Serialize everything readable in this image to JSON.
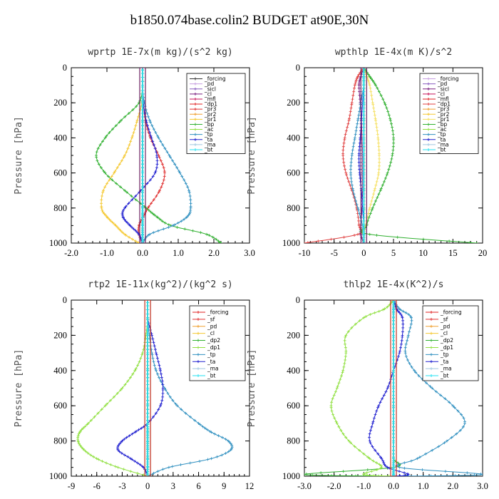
{
  "title": "b1850.074base.colin2  BUDGET at90E,30N",
  "chart_data": [
    {
      "type": "line",
      "title": "wprtp  1E-7x(m kg)/(s^2 kg)",
      "ylabel": "Pressure [hPa]",
      "xlim": [
        -2.0,
        3.0
      ],
      "ylim": [
        1000,
        0
      ],
      "xticks": [
        "-2.0",
        "-1.0",
        "0.0",
        "1.0",
        "2.0",
        "3.0"
      ],
      "yticks": [
        "0",
        "200",
        "400",
        "600",
        "800",
        "1000"
      ],
      "legend": "top-right",
      "y": [
        0,
        100,
        200,
        300,
        400,
        500,
        600,
        700,
        800,
        850,
        900,
        950,
        1000
      ],
      "series": [
        {
          "name": "_forcing",
          "color": "#333333",
          "values": [
            0,
            0,
            0,
            0,
            0,
            0,
            0,
            0,
            0,
            0,
            0,
            0,
            0
          ]
        },
        {
          "name": "_pd",
          "color": "#c8a0e0",
          "values": [
            0,
            0,
            0,
            0,
            0,
            0,
            0,
            0,
            0,
            0,
            0,
            0,
            0
          ]
        },
        {
          "name": "_sicl",
          "color": "#8a5fc0",
          "values": [
            0,
            0,
            0,
            0,
            0,
            0,
            0,
            0,
            0,
            0,
            0,
            0,
            0
          ]
        },
        {
          "name": "_cl",
          "color": "#7a2080",
          "values": [
            0,
            0,
            0,
            0,
            0,
            0,
            0,
            0,
            0,
            0,
            0,
            0,
            0
          ]
        },
        {
          "name": "_mfl",
          "color": "#c8145a",
          "values": [
            0,
            0,
            0,
            0,
            0,
            0,
            0,
            0,
            0,
            0,
            0,
            0,
            0
          ]
        },
        {
          "name": "_dp1",
          "color": "#e02020",
          "values": [
            0,
            0,
            0,
            0,
            0,
            0,
            0,
            0,
            0,
            0,
            0,
            0,
            0
          ]
        },
        {
          "name": "_pr3",
          "color": "#e03030",
          "values": [
            0,
            0,
            0.02,
            0.08,
            0.22,
            0.45,
            0.62,
            0.48,
            0.15,
            0.02,
            -0.1,
            -0.1,
            0
          ]
        },
        {
          "name": "_pr2",
          "color": "#f0a030",
          "values": [
            0,
            0,
            0,
            0,
            0,
            0,
            0,
            0,
            0,
            0,
            0,
            0,
            0
          ]
        },
        {
          "name": "_pr1",
          "color": "#f5c830",
          "values": [
            0,
            0,
            -0.02,
            -0.15,
            -0.3,
            -0.5,
            -0.8,
            -1.1,
            -1.15,
            -1.0,
            -0.75,
            -0.5,
            -0.1
          ]
        },
        {
          "name": "_bp",
          "color": "#30b030",
          "values": [
            0,
            0,
            -0.1,
            -0.6,
            -1.05,
            -1.3,
            -1.05,
            -0.5,
            0.1,
            0.4,
            0.8,
            1.8,
            2.2
          ]
        },
        {
          "name": "_ac",
          "color": "#90e040",
          "values": [
            0,
            0,
            0,
            0,
            0,
            0,
            0,
            0,
            0,
            0,
            0,
            0,
            0
          ]
        },
        {
          "name": "_tp",
          "color": "#3090c0",
          "values": [
            0,
            0,
            0.05,
            0.2,
            0.45,
            0.75,
            1.05,
            1.3,
            1.35,
            1.25,
            0.85,
            0.2,
            0
          ]
        },
        {
          "name": "_ta",
          "color": "#2020d0",
          "values": [
            0,
            0,
            0.02,
            0.1,
            0.25,
            0.4,
            0.35,
            -0.05,
            -0.5,
            -0.55,
            -0.35,
            -0.1,
            0
          ]
        },
        {
          "name": "_ma",
          "color": "#a0c8e0",
          "values": [
            0,
            0,
            0,
            0,
            0,
            0,
            0,
            0,
            0,
            0,
            0,
            0,
            0
          ]
        },
        {
          "name": "_bt",
          "color": "#20e0f0",
          "values": [
            0,
            0,
            0,
            0,
            0,
            0,
            0,
            0,
            0,
            0,
            0,
            0,
            0
          ]
        }
      ]
    },
    {
      "type": "line",
      "title": "wpthlp  1E-4x(m K)/s^2",
      "ylabel": "Pressure [hPa]",
      "xlim": [
        -10,
        20
      ],
      "ylim": [
        1000,
        0
      ],
      "xticks": [
        "-10",
        "-5",
        "0",
        "5",
        "10",
        "15",
        "20"
      ],
      "yticks": [
        "0",
        "200",
        "400",
        "600",
        "800",
        "1000"
      ],
      "legend": "top-right",
      "y": [
        0,
        50,
        100,
        200,
        300,
        400,
        500,
        600,
        700,
        800,
        900,
        950,
        1000
      ],
      "series": [
        {
          "name": "_forcing",
          "color": "#c8a0e0",
          "values": [
            0,
            0,
            0,
            0,
            0,
            0,
            0,
            0,
            0,
            0,
            0,
            0,
            0
          ]
        },
        {
          "name": "_pd",
          "color": "#8a5fc0",
          "values": [
            0,
            0,
            0,
            0,
            0,
            0,
            0,
            0,
            0,
            0,
            0,
            0,
            0
          ]
        },
        {
          "name": "_sicl",
          "color": "#7a2080",
          "values": [
            0,
            -0.5,
            -0.8,
            -0.6,
            -0.4,
            -0.3,
            -0.2,
            -0.2,
            -0.2,
            -0.3,
            -0.5,
            -0.5,
            0
          ]
        },
        {
          "name": "_cl",
          "color": "#c8145a",
          "values": [
            0,
            0,
            0,
            0,
            0,
            0,
            0,
            0,
            0,
            0,
            0,
            0,
            0
          ]
        },
        {
          "name": "_mfl",
          "color": "#e02020",
          "values": [
            0,
            0,
            0,
            0,
            0,
            0,
            0,
            0,
            0,
            0,
            0,
            0,
            0
          ]
        },
        {
          "name": "_dp1",
          "color": "#e04040",
          "values": [
            0,
            -1,
            -1.5,
            -2,
            -2.5,
            -3.2,
            -3.5,
            -3.0,
            -2.0,
            -1.2,
            -0.8,
            -1.0,
            -10
          ]
        },
        {
          "name": "_pr3",
          "color": "#f0a030",
          "values": [
            0,
            0,
            0,
            0,
            0,
            0,
            0,
            0,
            0,
            0,
            0,
            0,
            0
          ]
        },
        {
          "name": "_pr2",
          "color": "#f5c830",
          "values": [
            0,
            0,
            0,
            0,
            0,
            0,
            0,
            0,
            0,
            0,
            0,
            0,
            0
          ]
        },
        {
          "name": "_pr1",
          "color": "#f5e060",
          "values": [
            0,
            0.5,
            1,
            1.5,
            2,
            2.4,
            2.6,
            2.5,
            1.8,
            1.0,
            0.3,
            0,
            0
          ]
        },
        {
          "name": "_bp",
          "color": "#30b030",
          "values": [
            0,
            1,
            2,
            3.5,
            4.5,
            5,
            4.8,
            4.0,
            2.8,
            1.5,
            0.5,
            1.0,
            19
          ]
        },
        {
          "name": "_ac",
          "color": "#90e040",
          "values": [
            0,
            0,
            0,
            0,
            0,
            0,
            0,
            0,
            0,
            0,
            0,
            0,
            0
          ]
        },
        {
          "name": "_tp",
          "color": "#3090c0",
          "values": [
            0,
            0,
            0,
            -0.5,
            -1.0,
            -1.5,
            -2.0,
            -2.2,
            -1.8,
            -1.0,
            -0.2,
            0,
            0
          ]
        },
        {
          "name": "_ta",
          "color": "#2020d0",
          "values": [
            0,
            0,
            0,
            -0.2,
            -0.4,
            -0.6,
            -0.8,
            -0.7,
            -0.4,
            -0.2,
            0,
            0,
            0
          ]
        },
        {
          "name": "_ma",
          "color": "#a0c8e0",
          "values": [
            0,
            0,
            0,
            0,
            0,
            0,
            0,
            0,
            0,
            0,
            0,
            0,
            0
          ]
        },
        {
          "name": "_bt",
          "color": "#20e0f0",
          "values": [
            0,
            0,
            0,
            0,
            0,
            0,
            0,
            0,
            0,
            0,
            0,
            0,
            0
          ]
        }
      ]
    },
    {
      "type": "line",
      "title": "rtp2  1E-11x(kg^2)/(kg^2 s)",
      "ylabel": "Pressure [hPa]",
      "xlim": [
        -9,
        12
      ],
      "ylim": [
        1000,
        0
      ],
      "xticks": [
        "-9",
        "-6",
        "-3",
        "0",
        "3",
        "6",
        "9",
        "12"
      ],
      "yticks": [
        "0",
        "200",
        "400",
        "600",
        "800",
        "1000"
      ],
      "legend": "top-right",
      "y": [
        0,
        100,
        200,
        300,
        400,
        500,
        600,
        700,
        750,
        800,
        850,
        900,
        950,
        1000
      ],
      "series": [
        {
          "name": "_forcing",
          "color": "#e02020",
          "values": [
            0,
            0,
            0,
            0,
            0,
            0,
            0,
            0,
            0,
            0,
            0,
            0,
            0,
            0
          ]
        },
        {
          "name": "_sf",
          "color": "#e03030",
          "values": [
            0,
            0,
            0,
            0,
            0,
            0,
            0,
            0,
            0,
            0,
            0,
            0,
            0,
            0
          ]
        },
        {
          "name": "_pd",
          "color": "#f0a030",
          "values": [
            0,
            0,
            0,
            0,
            0,
            0,
            0,
            0,
            0,
            0,
            0,
            0,
            0,
            0
          ]
        },
        {
          "name": "_cl",
          "color": "#f5c830",
          "values": [
            0,
            0,
            0,
            0,
            0,
            0,
            0,
            0,
            0,
            0,
            0,
            0,
            0,
            0
          ]
        },
        {
          "name": "_dp2",
          "color": "#30b030",
          "values": [
            0,
            0,
            0,
            0,
            0,
            0,
            0,
            0,
            0,
            0,
            0,
            0,
            0,
            0
          ]
        },
        {
          "name": "_dp1",
          "color": "#90e040",
          "values": [
            0,
            0,
            -0.2,
            -0.6,
            -1.5,
            -3,
            -5,
            -7,
            -8,
            -8.2,
            -7.5,
            -6,
            -3.5,
            0
          ]
        },
        {
          "name": "_tp",
          "color": "#3090c0",
          "values": [
            0,
            0,
            0.2,
            0.5,
            1.0,
            2.0,
            3.5,
            6,
            7.5,
            9.5,
            9.8,
            7.5,
            2.5,
            0
          ]
        },
        {
          "name": "_ta",
          "color": "#2020d0",
          "values": [
            0,
            0,
            0.5,
            1.0,
            1.5,
            1.8,
            1.5,
            0,
            -1.5,
            -3.0,
            -3.5,
            -2.0,
            -0.5,
            0
          ]
        },
        {
          "name": "_ma",
          "color": "#a0c8e0",
          "values": [
            0,
            0,
            0,
            0,
            0,
            0,
            0,
            0,
            0,
            0,
            0,
            0,
            0,
            0
          ]
        },
        {
          "name": "_bt",
          "color": "#20e0f0",
          "values": [
            0,
            0,
            0,
            0,
            0,
            0,
            0,
            0,
            0,
            0,
            0,
            0,
            0,
            0
          ]
        }
      ]
    },
    {
      "type": "line",
      "title": "thlp2  1E-4x(K^2)/s",
      "ylabel": "Pressure [hPa]",
      "xlim": [
        -3.0,
        3.0
      ],
      "ylim": [
        1000,
        0
      ],
      "xticks": [
        "-3.0",
        "-2.0",
        "-1.0",
        "0.0",
        "1.0",
        "2.0",
        "3.0"
      ],
      "yticks": [
        "0",
        "200",
        "400",
        "600",
        "800",
        "1000"
      ],
      "legend": "top-right",
      "y": [
        0,
        50,
        100,
        200,
        300,
        400,
        500,
        600,
        700,
        800,
        900,
        950,
        990,
        1000
      ],
      "series": [
        {
          "name": "_forcing",
          "color": "#e02020",
          "values": [
            0,
            0,
            0,
            0,
            0,
            0,
            0,
            0,
            0,
            0,
            0,
            0,
            0,
            0
          ]
        },
        {
          "name": "_sf",
          "color": "#e03030",
          "values": [
            0,
            0,
            0,
            0,
            0,
            0,
            0,
            0,
            0,
            0,
            0,
            0,
            0,
            0
          ]
        },
        {
          "name": "_pd",
          "color": "#f0a030",
          "values": [
            0,
            0,
            0,
            0,
            0,
            0,
            0,
            0,
            0,
            0,
            0,
            0,
            0,
            0
          ]
        },
        {
          "name": "_cl",
          "color": "#f5c830",
          "values": [
            0,
            0,
            0,
            0,
            0,
            0,
            0,
            0,
            0,
            0,
            0,
            0,
            0,
            0
          ]
        },
        {
          "name": "_dp2",
          "color": "#30b030",
          "values": [
            0,
            0,
            0,
            0,
            0,
            0,
            0,
            0,
            0,
            0,
            0,
            0,
            -3.0,
            0
          ]
        },
        {
          "name": "_dp1",
          "color": "#90e040",
          "values": [
            0,
            -0.3,
            -1.0,
            -1.6,
            -1.6,
            -1.7,
            -1.9,
            -2.1,
            -1.9,
            -1.5,
            -0.8,
            -0.4,
            -1.0,
            0
          ]
        },
        {
          "name": "_tp",
          "color": "#3090c0",
          "values": [
            0,
            0.2,
            0.6,
            0.5,
            0.4,
            0.7,
            1.3,
            2.0,
            2.4,
            1.8,
            0.8,
            0.2,
            3.0,
            0
          ]
        },
        {
          "name": "_ta",
          "color": "#2020d0",
          "values": [
            0,
            0.1,
            0.3,
            0.3,
            0.2,
            0.0,
            -0.2,
            -0.5,
            -0.7,
            -0.8,
            -0.4,
            -0.2,
            0.5,
            0
          ]
        },
        {
          "name": "_ma",
          "color": "#a0c8e0",
          "values": [
            0,
            0,
            0,
            0,
            0,
            0,
            0,
            0,
            0,
            0,
            0,
            0,
            0,
            0
          ]
        },
        {
          "name": "_bt",
          "color": "#20e0f0",
          "values": [
            0,
            0,
            0,
            0,
            0,
            0,
            0,
            0,
            0,
            0,
            0,
            0,
            0,
            0
          ]
        }
      ]
    }
  ]
}
